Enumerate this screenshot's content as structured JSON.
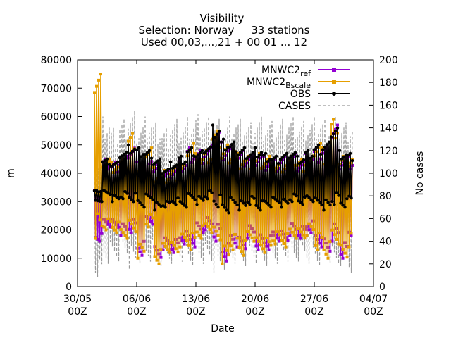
{
  "chart_data": {
    "type": "line",
    "title_lines": [
      "Visibility",
      "Selection: Norway     33 stations",
      "Used 00,03,...,21 + 00 01 ... 12"
    ],
    "xlabel": "Date",
    "ylabel": "m",
    "y2label": "No cases",
    "xlim": [
      "30/05 00Z",
      "04/07 00Z"
    ],
    "ylim": [
      0,
      80000
    ],
    "y2lim": [
      0,
      200
    ],
    "x_ticks": [
      {
        "top": "30/05",
        "bottom": "00Z"
      },
      {
        "top": "06/06",
        "bottom": "00Z"
      },
      {
        "top": "13/06",
        "bottom": "00Z"
      },
      {
        "top": "20/06",
        "bottom": "00Z"
      },
      {
        "top": "27/06",
        "bottom": "00Z"
      },
      {
        "top": "04/07",
        "bottom": "00Z"
      }
    ],
    "y_ticks": [
      "0",
      "10000",
      "20000",
      "30000",
      "40000",
      "50000",
      "60000",
      "70000",
      "80000"
    ],
    "y2_ticks": [
      "0",
      "20",
      "40",
      "60",
      "80",
      "100",
      "120",
      "140",
      "160",
      "180",
      "200"
    ],
    "data_start": "01/06 00Z",
    "data_end": "01/07 12Z",
    "step_hours": 3,
    "series": [
      {
        "name_main": "MNWC2",
        "name_sub": "ref",
        "color": "#9400d3",
        "marker": "square",
        "axis": "y",
        "daily_high": [
          34000,
          45000,
          44000,
          46000,
          50000,
          44000,
          47000,
          43000,
          41000,
          43000,
          45000,
          49000,
          48000,
          49000,
          56000,
          51000,
          50000,
          48000,
          47000,
          48000,
          46000,
          45000,
          46000,
          47000,
          45000,
          47000,
          49000,
          50000,
          57000,
          47000,
          46000
        ],
        "daily_low": [
          16000,
          21000,
          20000,
          18000,
          19000,
          11000,
          22000,
          9000,
          13000,
          12000,
          15000,
          14000,
          18000,
          20000,
          16000,
          9000,
          14000,
          12000,
          17000,
          13000,
          13000,
          16000,
          15000,
          18000,
          17000,
          19000,
          14000,
          11000,
          16000,
          10000,
          17000
        ]
      },
      {
        "name_main": "MNWC2",
        "name_sub": "Bscale",
        "color": "#e69f00",
        "marker": "square",
        "axis": "y",
        "daily_high": [
          75000,
          46000,
          44000,
          45000,
          54000,
          43000,
          50000,
          42000,
          41000,
          42000,
          44000,
          52000,
          47000,
          48000,
          55000,
          50000,
          49000,
          47000,
          46000,
          47000,
          46000,
          44000,
          45000,
          46000,
          45000,
          46000,
          52000,
          49000,
          59000,
          46000,
          46000
        ],
        "daily_low": [
          17000,
          20000,
          19000,
          17000,
          18000,
          10000,
          21000,
          8000,
          12000,
          11000,
          14000,
          13000,
          17000,
          19000,
          15000,
          8000,
          13000,
          11000,
          16000,
          12000,
          12000,
          15000,
          14000,
          17000,
          16000,
          18000,
          13000,
          10000,
          15000,
          9000,
          14000
        ]
      },
      {
        "name_main": "OBS",
        "name_sub": "",
        "color": "#000000",
        "marker": "circle",
        "axis": "y",
        "daily_high": [
          34000,
          45000,
          44000,
          48000,
          50000,
          49000,
          48000,
          45000,
          42000,
          44000,
          46000,
          49000,
          48000,
          50000,
          57000,
          52000,
          51000,
          49000,
          48000,
          49000,
          47000,
          46000,
          47000,
          48000,
          46000,
          48000,
          50000,
          51000,
          57000,
          48000,
          47000
        ],
        "daily_low": [
          30000,
          32000,
          30000,
          31000,
          30000,
          28000,
          30000,
          27000,
          28000,
          29000,
          28000,
          30000,
          29000,
          31000,
          28000,
          26000,
          28000,
          27000,
          29000,
          27000,
          28000,
          29000,
          28000,
          30000,
          29000,
          30000,
          28000,
          27000,
          29000,
          28000,
          30000
        ]
      },
      {
        "name_main": "CASES",
        "name_sub": "",
        "color": "#999999",
        "marker": "none",
        "axis": "y2",
        "daily_high": [
          112,
          150,
          140,
          148,
          155,
          145,
          150,
          145,
          140,
          148,
          145,
          150,
          152,
          150,
          148,
          145,
          150,
          148,
          145,
          150,
          148,
          146,
          148,
          150,
          146,
          148,
          150,
          148,
          150,
          145,
          148
        ],
        "daily_low": [
          8,
          20,
          22,
          25,
          15,
          20,
          22,
          18,
          20,
          20,
          22,
          18,
          20,
          18,
          12,
          15,
          20,
          18,
          22,
          20,
          18,
          20,
          22,
          20,
          22,
          20,
          18,
          20,
          15,
          18,
          12
        ]
      }
    ],
    "legend_position": "top-right",
    "grid": false
  }
}
